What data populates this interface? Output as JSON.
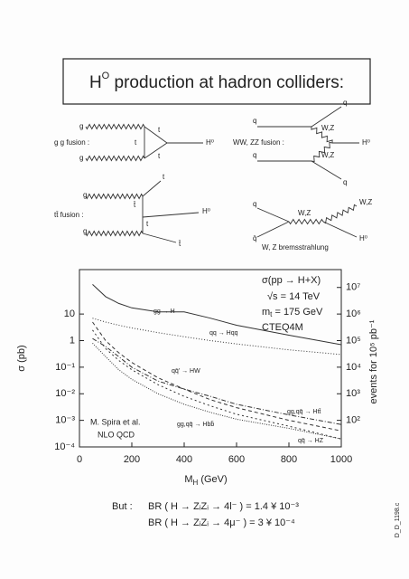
{
  "title": {
    "base": "H",
    "sup": "O",
    "rest": " production at hadron colliders:"
  },
  "diagrams": [
    {
      "caption": "g g fusion :",
      "labels": [
        "g",
        "g",
        "t",
        "t",
        "t",
        "H⁰"
      ]
    },
    {
      "caption": "WW, ZZ fusion :",
      "labels": [
        "q",
        "q",
        "q",
        "q",
        "W,Z",
        "W,Z",
        "H⁰"
      ]
    },
    {
      "caption": "tt̄ fusion :",
      "labels": [
        "g",
        "g",
        "t",
        "t̄",
        "t",
        "t̄",
        "H⁰"
      ]
    },
    {
      "caption": "W, Z bremsstrahlung",
      "labels": [
        "q",
        "q̄",
        "W,Z",
        "W,Z",
        "H⁰"
      ]
    }
  ],
  "chart_data": {
    "type": "line",
    "x_label": {
      "base": "M",
      "sub": "H",
      "rest": " (GeV)"
    },
    "y_label": "σ (pb)",
    "y2_label": "events for 10⁵ pb⁻¹",
    "annotations": [
      "σ(pp → H+X)",
      "√s = 14 TeV",
      "CTEQ4M",
      "M. Spira et al.",
      "NLO QCD"
    ],
    "mt_label": {
      "base": "m",
      "sub": "t",
      "rest": " = 175 GeV"
    },
    "x": [
      50,
      100,
      150,
      200,
      300,
      400,
      500,
      600,
      800,
      1000
    ],
    "series": [
      {
        "name": "gg → H",
        "color": "#333333",
        "dash": "none",
        "values": [
          130,
          45,
          25,
          17,
          12,
          12,
          7,
          3.8,
          1.6,
          0.7
        ]
      },
      {
        "name": "qq → Hqq",
        "color": "#333333",
        "dash": "1,2",
        "values": [
          7,
          5,
          3.8,
          3,
          2,
          1.4,
          1,
          0.75,
          0.45,
          0.3
        ]
      },
      {
        "name": "qq̄' → HW",
        "color": "#333333",
        "dash": "4,3",
        "values": [
          5,
          1,
          0.35,
          0.15,
          0.04,
          0.015,
          0.006,
          0.003,
          0.001,
          0.0004
        ]
      },
      {
        "name": "gg,qq̄ → Htt̄",
        "color": "#333333",
        "dash": "5,2,1,2",
        "values": [
          1.2,
          0.6,
          0.25,
          0.1,
          0.03,
          0.015,
          0.008,
          0.004,
          0.0016,
          0.0007
        ]
      },
      {
        "name": "gg,qq̄ → Hbb̄",
        "color": "#333333",
        "dash": "1,1.5",
        "values": [
          0.8,
          0.25,
          0.08,
          0.035,
          0.01,
          0.004,
          0.002,
          0.0011,
          0.0005,
          0.0002
        ]
      },
      {
        "name": "qq̄ → HZ",
        "color": "#333333",
        "dash": "2,3",
        "values": [
          2.5,
          0.5,
          0.18,
          0.08,
          0.022,
          0.008,
          0.0035,
          0.0017,
          0.0006,
          0.0002
        ]
      }
    ],
    "xlim": [
      0,
      1000
    ],
    "xticks": [
      0,
      200,
      400,
      600,
      800,
      1000
    ],
    "ylim": [
      0.0001,
      470
    ],
    "yticks": [
      {
        "value": 0.0001,
        "label": "10⁻⁴"
      },
      {
        "value": 0.001,
        "label": "10⁻³"
      },
      {
        "value": 0.01,
        "label": "10⁻²"
      },
      {
        "value": 0.1,
        "label": "10⁻¹"
      },
      1,
      10
    ],
    "y2lim": [
      10,
      47000000
    ],
    "y2ticks": [
      {
        "value": 100,
        "label": "10²"
      },
      {
        "value": 1000,
        "label": "10³"
      },
      {
        "value": 10000,
        "label": "10⁴"
      },
      {
        "value": 100000,
        "label": "10⁵"
      },
      {
        "value": 1000000,
        "label": "10⁶"
      },
      {
        "value": 10000000,
        "label": "10⁷"
      }
    ],
    "log_scale": true
  },
  "footer": {
    "but": "But :",
    "lines": [
      "BR ( H → ZᵢZᵢ → 4l⁻ ) = 1.4 ¥ 10⁻³",
      "BR ( H → ZᵢZᵢ → 4μ⁻ ) = 3 ¥ 10⁻⁴"
    ],
    "side": "D_D_1198.c"
  }
}
